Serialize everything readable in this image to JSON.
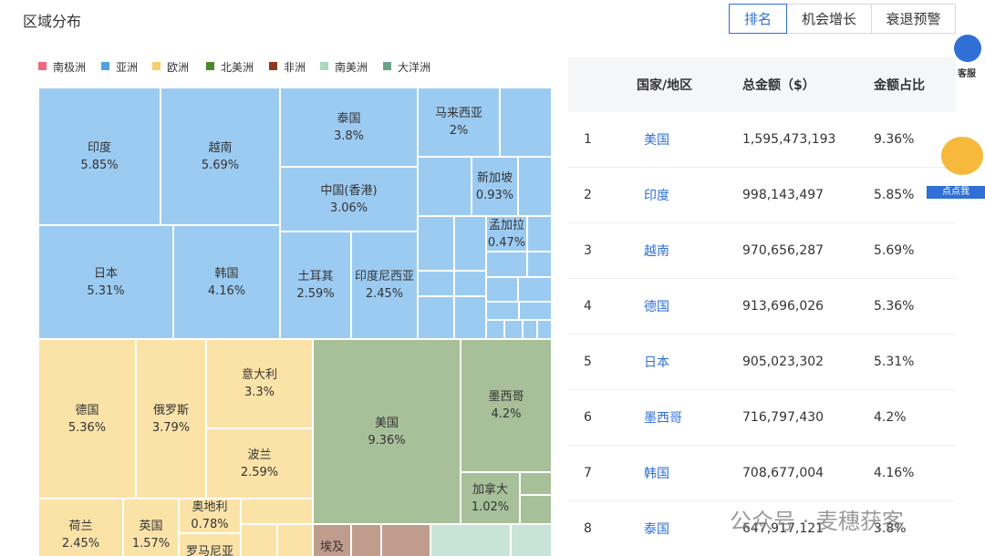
{
  "header": {
    "title": "区域分布",
    "tabs": [
      "排名",
      "机会增长",
      "衰退预警"
    ],
    "service": "客服"
  },
  "legend": [
    "南极洲",
    "亚洲",
    "欧洲",
    "北美洲",
    "非洲",
    "南美洲",
    "大洋洲"
  ],
  "treemap": {
    "tiles": [
      {
        "name": "印度",
        "share": "5.85%"
      },
      {
        "name": "越南",
        "share": "5.69%"
      },
      {
        "name": "日本",
        "share": "5.31%"
      },
      {
        "name": "韩国",
        "share": "4.16%"
      },
      {
        "name": "泰国",
        "share": "3.8%"
      },
      {
        "name": "中国(香港)",
        "share": "3.06%"
      },
      {
        "name": "土耳其",
        "share": "2.59%"
      },
      {
        "name": "印度尼西亚",
        "share": "2.45%"
      },
      {
        "name": "马来西亚",
        "share": "2%"
      },
      {
        "name": "新加坡",
        "share": "0.93%"
      },
      {
        "name": "孟加拉",
        "share": "0.47%"
      },
      {
        "name": "德国",
        "share": "5.36%"
      },
      {
        "name": "俄罗斯",
        "share": "3.79%"
      },
      {
        "name": "意大利",
        "share": "3.3%"
      },
      {
        "name": "波兰",
        "share": "2.59%"
      },
      {
        "name": "荷兰",
        "share": "2.45%"
      },
      {
        "name": "英国",
        "share": "1.57%"
      },
      {
        "name": "奥地利",
        "share": "0.78%"
      },
      {
        "name": "罗马尼亚"
      },
      {
        "name": "美国",
        "share": "9.36%"
      },
      {
        "name": "墨西哥",
        "share": "4.2%"
      },
      {
        "name": "加拿大",
        "share": "1.02%"
      },
      {
        "name": "埃及"
      }
    ]
  },
  "table": {
    "columns": [
      "国家/地区",
      "总金额（$）",
      "金额占比"
    ],
    "rows": [
      [
        "1",
        "美国",
        "1,595,473,193",
        "9.36%"
      ],
      [
        "2",
        "印度",
        "998,143,497",
        "5.85%"
      ],
      [
        "3",
        "越南",
        "970,656,287",
        "5.69%"
      ],
      [
        "4",
        "德国",
        "913,696,026",
        "5.36%"
      ],
      [
        "5",
        "日本",
        "905,023,302",
        "5.31%"
      ],
      [
        "6",
        "墨西哥",
        "716,797,430",
        "4.2%"
      ],
      [
        "7",
        "韩国",
        "708,677,004",
        "4.16%"
      ],
      [
        "8",
        "泰国",
        "647,917,121",
        "3.8%"
      ]
    ]
  },
  "assistant": "点点我",
  "watermark": "公众号 · 麦穗获客"
}
